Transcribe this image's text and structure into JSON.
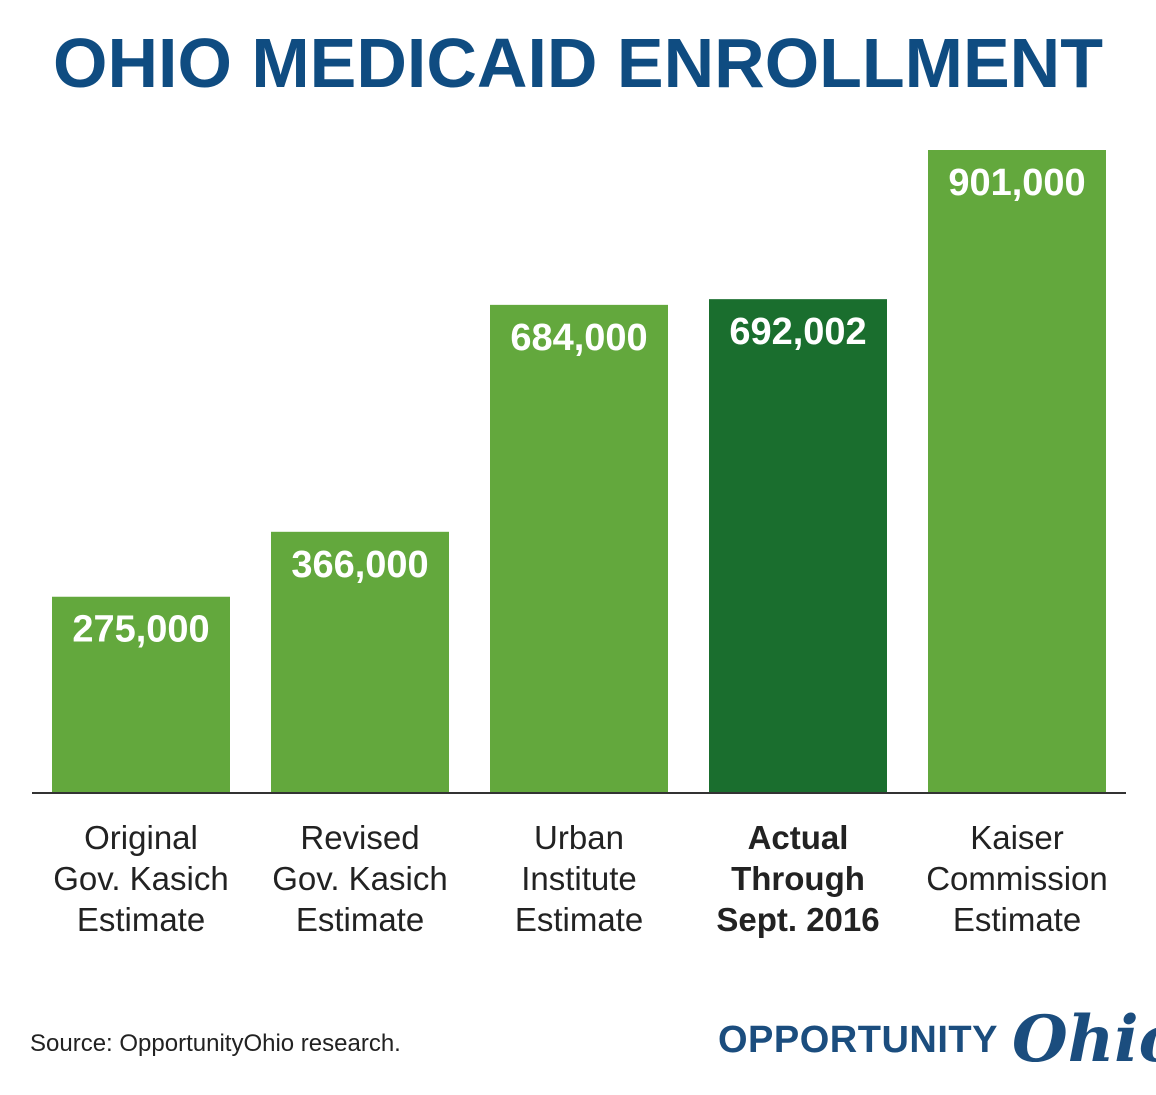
{
  "colors": {
    "title": "#0f4c81",
    "bar": "#63a83d",
    "bar_highlight": "#1a6e2e",
    "axis": "#333333",
    "logo_blue": "#1b4d7e"
  },
  "chart_data": {
    "type": "bar",
    "title": "OHIO MEDICAID ENROLLMENT",
    "categories": [
      [
        "Original",
        "Gov. Kasich",
        "Estimate"
      ],
      [
        "Revised",
        "Gov. Kasich",
        "Estimate"
      ],
      [
        "Urban",
        "Institute",
        "Estimate"
      ],
      [
        "Actual",
        "Through",
        "Sept. 2016"
      ],
      [
        "Kaiser",
        "Commission",
        "Estimate"
      ]
    ],
    "values": [
      275000,
      366000,
      684000,
      692002,
      901000
    ],
    "value_labels": [
      "275,000",
      "366,000",
      "684,000",
      "692,002",
      "901,000"
    ],
    "highlighted_index": 3,
    "ylim": [
      0,
      1000000
    ],
    "grid": false,
    "legend": "none"
  },
  "footer": {
    "source": "Source: OpportunityOhio research.",
    "logo_word": "OPPORTUNITY",
    "logo_script": "Ohio"
  }
}
